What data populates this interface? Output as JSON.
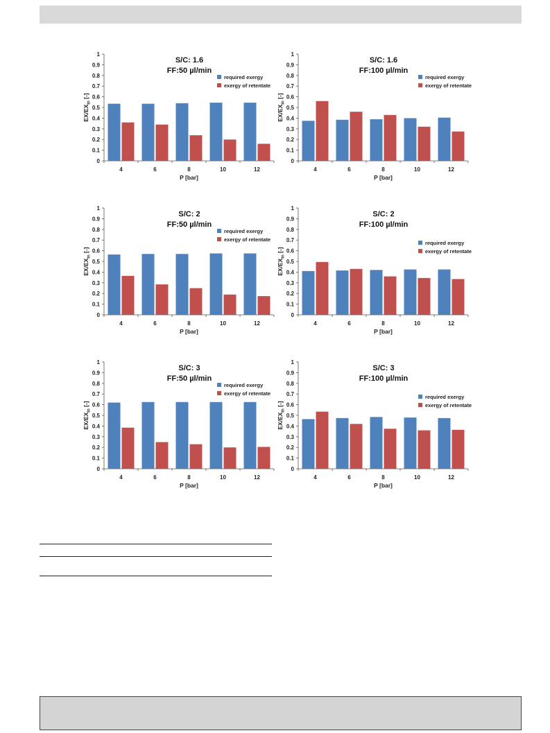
{
  "colors": {
    "required_exergy": "#4f81bd",
    "exergy_of_retentate": "#c0504d"
  },
  "chart_data": [
    {
      "type": "bar",
      "title_line1": "S/C: 1.6",
      "title_line2": "FF:50 µl/min",
      "xlabel": "P [bar]",
      "ylabel_main": "EX/EX",
      "ylabel_sub": "in",
      "ylabel_tail": " [-]",
      "ylim": [
        0,
        1
      ],
      "yticks": [
        "0",
        "0.1",
        "0.2",
        "0.3",
        "0.4",
        "0.5",
        "0.6",
        "0.7",
        "0.8",
        "0.9",
        "1"
      ],
      "categories": [
        "4",
        "6",
        "8",
        "10",
        "12"
      ],
      "legend_position": "top-right",
      "series": [
        {
          "name": "required exergy",
          "color": "#4f81bd",
          "values": [
            0.535,
            0.535,
            0.54,
            0.545,
            0.545
          ]
        },
        {
          "name": "exergy of retentate",
          "color": "#c0504d",
          "values": [
            0.36,
            0.34,
            0.24,
            0.2,
            0.16
          ]
        }
      ]
    },
    {
      "type": "bar",
      "title_line1": "S/C: 1.6",
      "title_line2": "FF:100 µl/min",
      "xlabel": "P [bar]",
      "ylabel_main": "EX/EX",
      "ylabel_sub": "in",
      "ylabel_tail": " [-]",
      "ylim": [
        0,
        1
      ],
      "yticks": [
        "0",
        "0.1",
        "0.2",
        "0.3",
        "0.4",
        "0.5",
        "0.6",
        "0.7",
        "0.8",
        "0.9",
        "1"
      ],
      "categories": [
        "4",
        "6",
        "8",
        "10",
        "12"
      ],
      "legend_position": "top-right",
      "series": [
        {
          "name": "required exergy",
          "color": "#4f81bd",
          "values": [
            0.375,
            0.385,
            0.39,
            0.4,
            0.405
          ]
        },
        {
          "name": "exergy of retentate",
          "color": "#c0504d",
          "values": [
            0.56,
            0.46,
            0.43,
            0.32,
            0.275
          ]
        }
      ]
    },
    {
      "type": "bar",
      "title_line1": "S/C: 2",
      "title_line2": "FF:50 µl/min",
      "xlabel": "P [bar]",
      "ylabel_main": "EX/EX",
      "ylabel_sub": "in",
      "ylabel_tail": " [-]",
      "ylim": [
        0,
        1
      ],
      "yticks": [
        "0",
        "0.1",
        "0.2",
        "0.3",
        "0.4",
        "0.5",
        "0.6",
        "0.7",
        "0.8",
        "0.9",
        "1"
      ],
      "categories": [
        "4",
        "6",
        "8",
        "10",
        "12"
      ],
      "legend_position": "top-right",
      "series": [
        {
          "name": "required exergy",
          "color": "#4f81bd",
          "values": [
            0.565,
            0.57,
            0.57,
            0.575,
            0.575
          ]
        },
        {
          "name": "exergy of retentate",
          "color": "#c0504d",
          "values": [
            0.365,
            0.285,
            0.25,
            0.19,
            0.175
          ]
        }
      ]
    },
    {
      "type": "bar",
      "title_line1": "S/C: 2",
      "title_line2": "FF:100 µl/min",
      "xlabel": "P [bar]",
      "ylabel_main": "EX/EX",
      "ylabel_sub": "in",
      "ylabel_tail": " [-]",
      "ylim": [
        0,
        1
      ],
      "yticks": [
        "0",
        "0.1",
        "0.2",
        "0.3",
        "0.4",
        "0.5",
        "0.6",
        "0.7",
        "0.8",
        "0.9",
        "1"
      ],
      "categories": [
        "4",
        "6",
        "8",
        "10",
        "12"
      ],
      "legend_position": "top-right",
      "series": [
        {
          "name": "required exergy",
          "color": "#4f81bd",
          "values": [
            0.41,
            0.415,
            0.42,
            0.425,
            0.425
          ]
        },
        {
          "name": "exergy of retentate",
          "color": "#c0504d",
          "values": [
            0.495,
            0.43,
            0.36,
            0.345,
            0.335
          ]
        }
      ]
    },
    {
      "type": "bar",
      "title_line1": "S/C: 3",
      "title_line2": "FF:50 µl/min",
      "xlabel": "P [bar]",
      "ylabel_main": "EX/EX",
      "ylabel_sub": "in",
      "ylabel_tail": " [-]",
      "ylim": [
        0,
        1
      ],
      "yticks": [
        "0",
        "0.1",
        "0.2",
        "0.3",
        "0.4",
        "0.5",
        "0.6",
        "0.7",
        "0.8",
        "0.9",
        "1"
      ],
      "categories": [
        "4",
        "6",
        "8",
        "10",
        "12"
      ],
      "legend_position": "top-right",
      "series": [
        {
          "name": "required exergy",
          "color": "#4f81bd",
          "values": [
            0.62,
            0.625,
            0.625,
            0.625,
            0.625
          ]
        },
        {
          "name": "exergy of retentate",
          "color": "#c0504d",
          "values": [
            0.385,
            0.25,
            0.23,
            0.2,
            0.205
          ]
        }
      ]
    },
    {
      "type": "bar",
      "title_line1": "S/C: 3",
      "title_line2": "FF:100 µl/min",
      "xlabel": "P [bar]",
      "ylabel_main": "EX/EX",
      "ylabel_sub": "in",
      "ylabel_tail": " [-]",
      "ylim": [
        0,
        1
      ],
      "yticks": [
        "0",
        "0.1",
        "0.2",
        "0.3",
        "0.4",
        "0.5",
        "0.6",
        "0.7",
        "0.8",
        "0.9",
        "1"
      ],
      "categories": [
        "4",
        "6",
        "8",
        "10",
        "12"
      ],
      "legend_position": "top-right",
      "series": [
        {
          "name": "required exergy",
          "color": "#4f81bd",
          "values": [
            0.465,
            0.475,
            0.485,
            0.48,
            0.475
          ]
        },
        {
          "name": "exergy of retentate",
          "color": "#c0504d",
          "values": [
            0.535,
            0.42,
            0.375,
            0.36,
            0.365
          ]
        }
      ]
    }
  ]
}
